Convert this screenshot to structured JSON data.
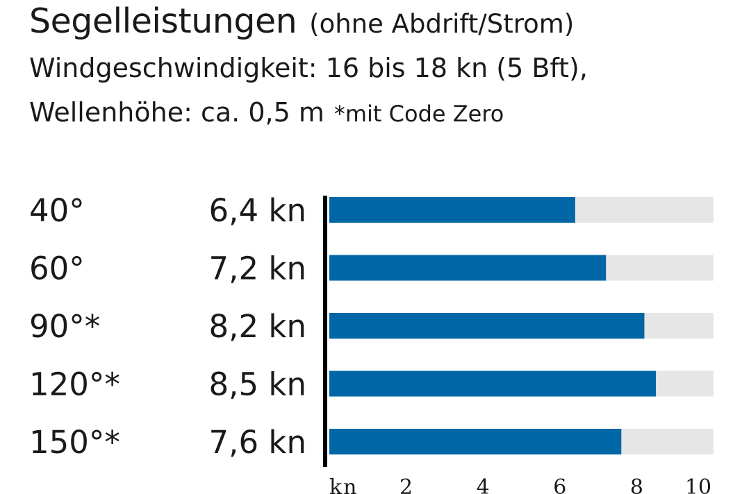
{
  "colors": {
    "bar": "#0066a6",
    "track": "#e6e6e6",
    "axis": "#000000",
    "text": "#1a1a1a"
  },
  "chart_data": {
    "type": "bar",
    "orientation": "horizontal",
    "title": "Segelleistungen",
    "subtitle": "(ohne Abdrift/Strom)",
    "conditions_line1": "Windgeschwindigkeit: 16 bis 18 kn (5 Bft),",
    "conditions_line2": "Wellenhöhe: ca. 0,5 m",
    "footnote": "*mit Code Zero",
    "categories": [
      "40°",
      "60°",
      "90°*",
      "120°*",
      "150°*"
    ],
    "values": [
      6.4,
      7.2,
      8.2,
      8.5,
      7.6
    ],
    "value_labels": [
      "6,4 kn",
      "7,2 kn",
      "8,2 kn",
      "8,5 kn",
      "7,6 kn"
    ],
    "xlim": [
      0,
      10
    ],
    "x_ticks": [
      2,
      4,
      6,
      8,
      10
    ],
    "x_unit_label": "kn"
  }
}
